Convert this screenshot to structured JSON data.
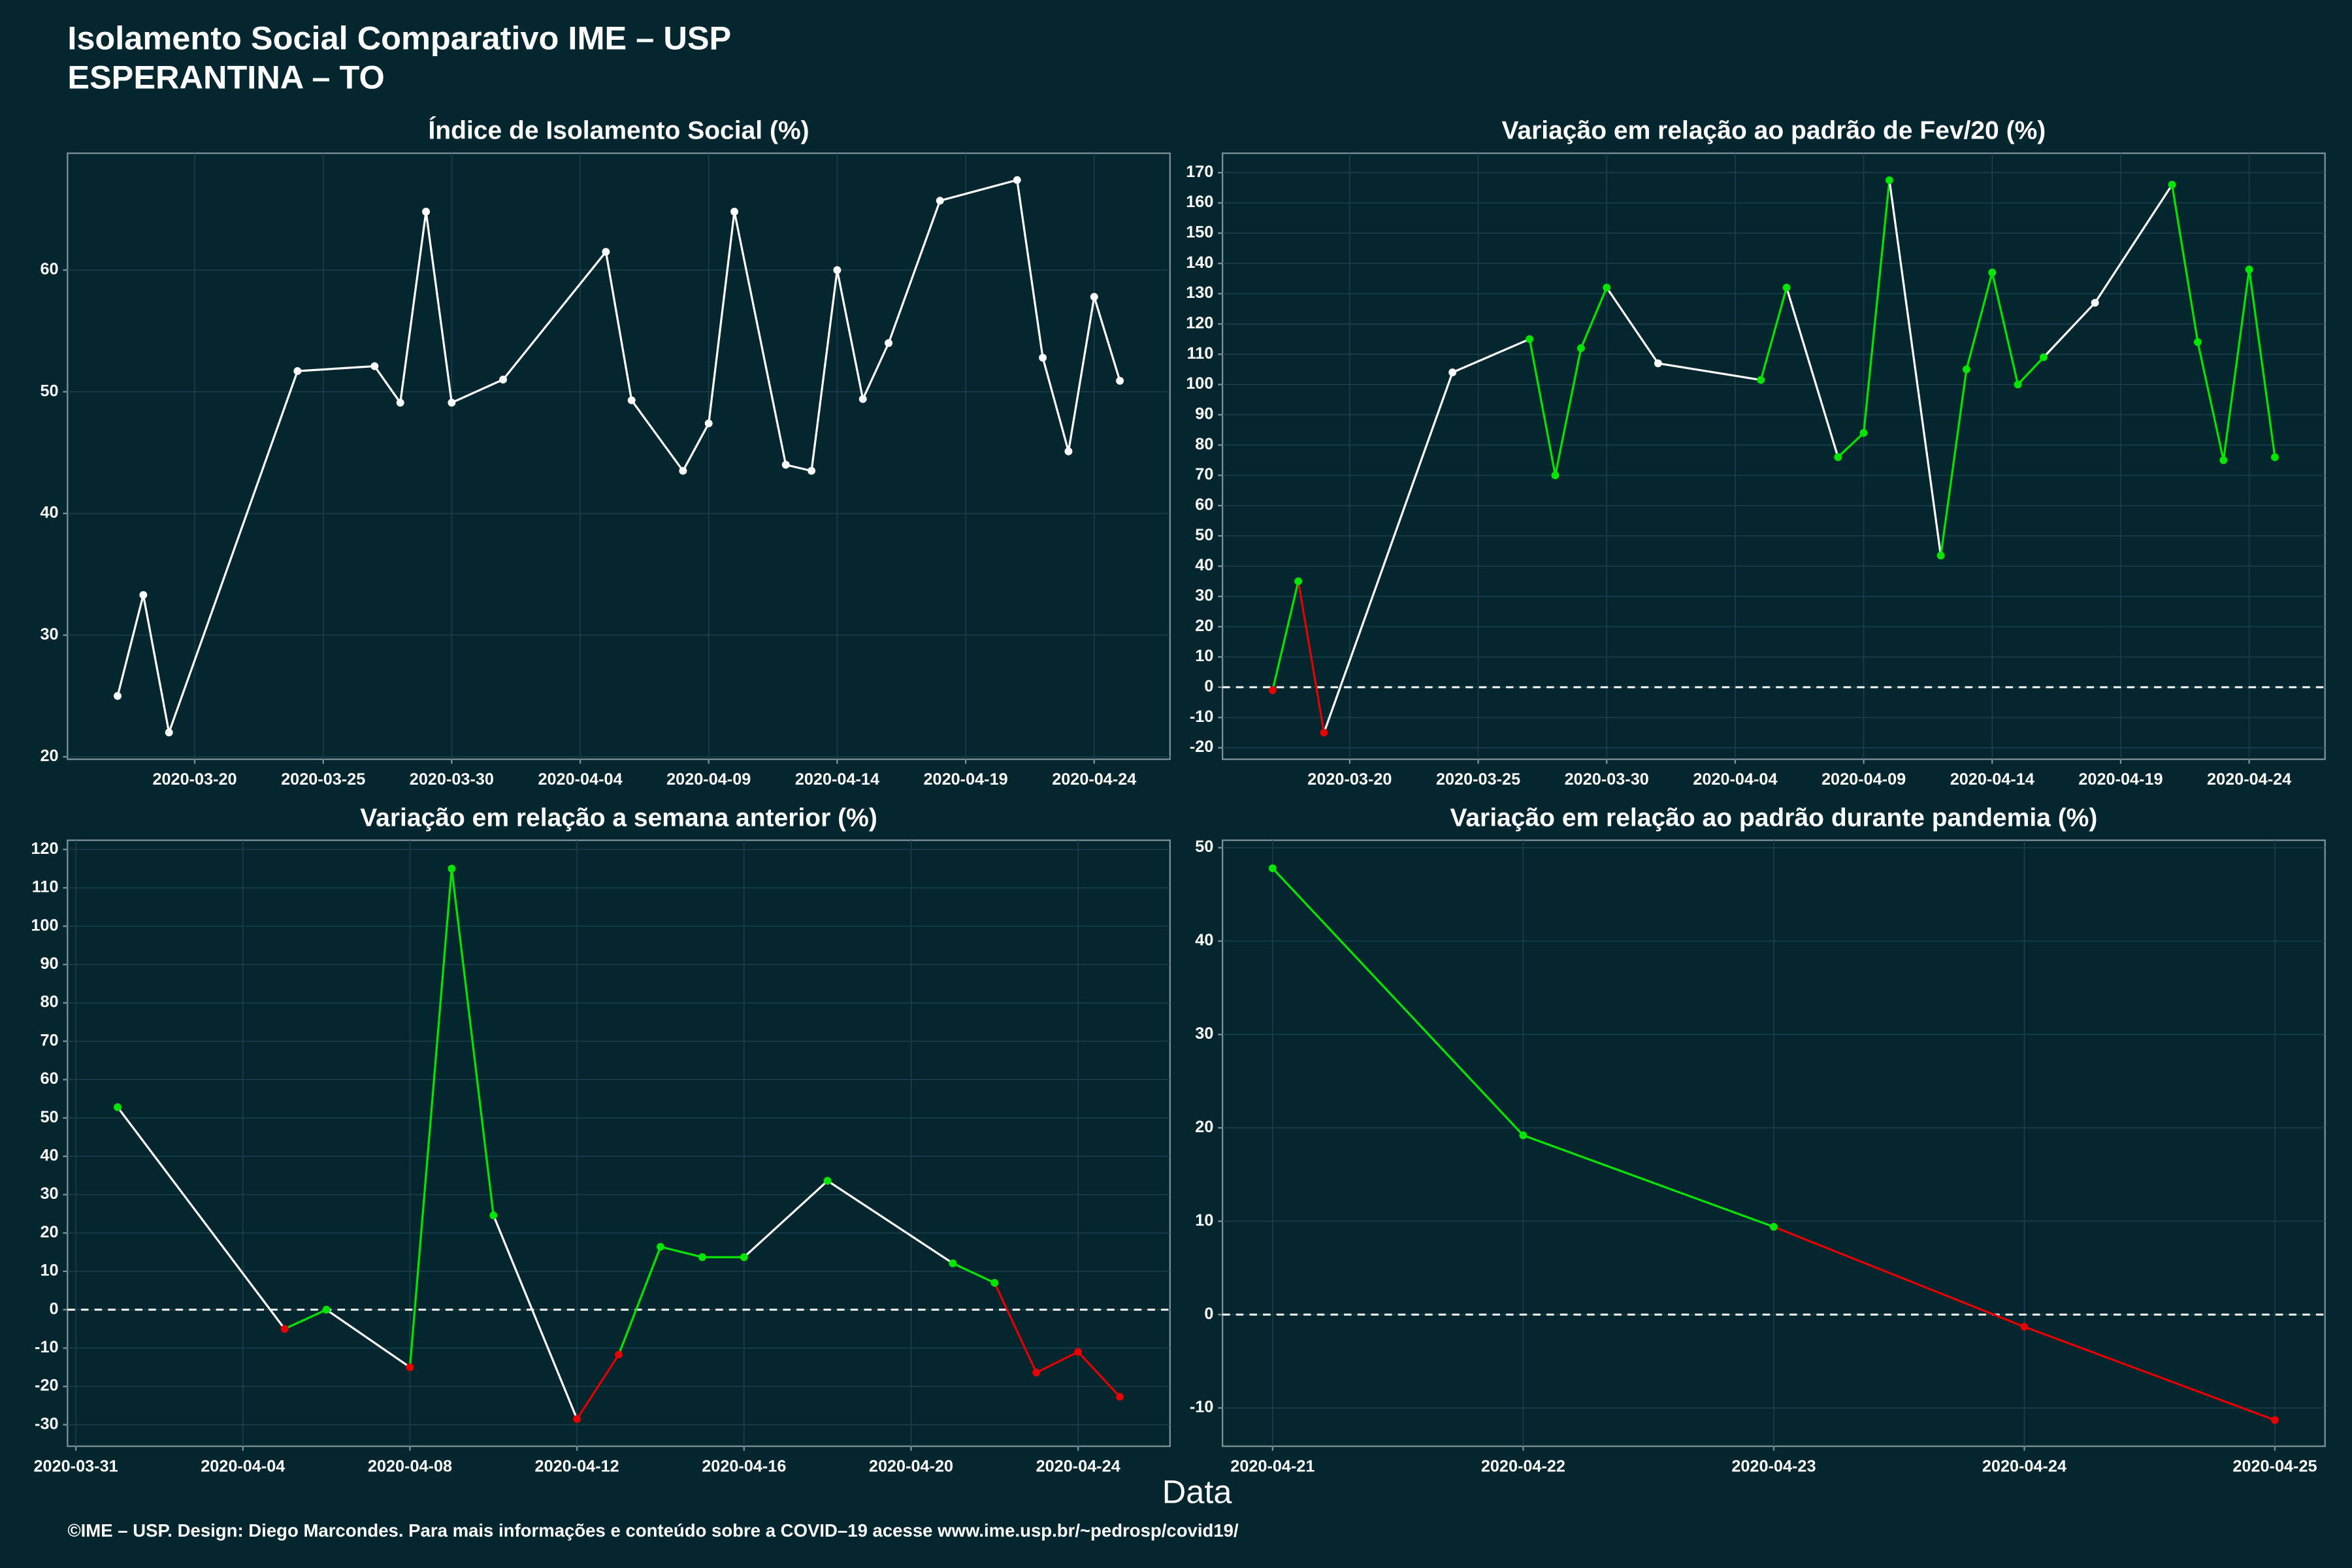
{
  "title": "Isolamento Social Comparativo IME – USP",
  "subtitle": "ESPERANTINA – TO",
  "xlabel": "Data",
  "footer": "©IME – USP. Design: Diego Marcondes. Para mais informações e conteúdo sobre a COVID–19 acesse www.ime.usp.br/~pedrosp/covid19/",
  "chart_data": [
    {
      "type": "line",
      "title": "Índice de Isolamento Social (%)",
      "x": [
        "2020-03-17",
        "2020-03-18",
        "2020-03-19",
        "2020-03-24",
        "2020-03-27",
        "2020-03-28",
        "2020-03-29",
        "2020-03-30",
        "2020-04-01",
        "2020-04-05",
        "2020-04-06",
        "2020-04-08",
        "2020-04-09",
        "2020-04-10",
        "2020-04-12",
        "2020-04-13",
        "2020-04-14",
        "2020-04-15",
        "2020-04-16",
        "2020-04-18",
        "2020-04-21",
        "2020-04-22",
        "2020-04-23",
        "2020-04-24",
        "2020-04-25"
      ],
      "values": [
        25.0,
        33.3,
        22.0,
        51.7,
        52.1,
        49.1,
        64.8,
        49.1,
        51.0,
        61.5,
        49.3,
        43.5,
        47.4,
        64.8,
        44.0,
        43.5,
        60.0,
        49.4,
        54.0,
        65.7,
        67.4,
        52.8,
        45.1,
        57.8,
        50.9
      ],
      "point_colors": [
        "#ffffff",
        "#ffffff",
        "#ffffff",
        "#ffffff",
        "#ffffff",
        "#ffffff",
        "#ffffff",
        "#ffffff",
        "#ffffff",
        "#ffffff",
        "#ffffff",
        "#ffffff",
        "#ffffff",
        "#ffffff",
        "#ffffff",
        "#ffffff",
        "#ffffff",
        "#ffffff",
        "#ffffff",
        "#ffffff",
        "#ffffff",
        "#ffffff",
        "#ffffff",
        "#ffffff",
        "#ffffff"
      ],
      "segment_colors": [
        "#ffffff",
        "#ffffff",
        "#ffffff",
        "#ffffff",
        "#ffffff",
        "#ffffff",
        "#ffffff",
        "#ffffff",
        "#ffffff",
        "#ffffff",
        "#ffffff",
        "#ffffff",
        "#ffffff",
        "#ffffff",
        "#ffffff",
        "#ffffff",
        "#ffffff",
        "#ffffff",
        "#ffffff",
        "#ffffff",
        "#ffffff",
        "#ffffff",
        "#ffffff",
        "#ffffff"
      ],
      "xticks": [
        "2020-03-20",
        "2020-03-25",
        "2020-03-30",
        "2020-04-04",
        "2020-04-09",
        "2020-04-14",
        "2020-04-19",
        "2020-04-24"
      ],
      "ylim": [
        19.8,
        69.6
      ],
      "yticks": [
        20,
        30,
        40,
        50,
        60
      ],
      "grid": true
    },
    {
      "type": "line",
      "title": "Variação em relação ao padrão de Fev/20 (%)",
      "x": [
        "2020-03-17",
        "2020-03-18",
        "2020-03-19",
        "2020-03-24",
        "2020-03-27",
        "2020-03-28",
        "2020-03-29",
        "2020-03-30",
        "2020-04-01",
        "2020-04-05",
        "2020-04-06",
        "2020-04-08",
        "2020-04-09",
        "2020-04-10",
        "2020-04-12",
        "2020-04-13",
        "2020-04-14",
        "2020-04-15",
        "2020-04-16",
        "2020-04-18",
        "2020-04-21",
        "2020-04-22",
        "2020-04-23",
        "2020-04-24",
        "2020-04-25"
      ],
      "values": [
        -1,
        35,
        -15,
        104,
        115,
        70,
        112,
        132,
        107,
        101.5,
        132,
        76,
        84,
        167.5,
        43.5,
        105,
        137,
        100,
        109,
        127,
        166,
        114,
        75,
        138,
        76
      ],
      "point_colors": [
        "#e60000",
        "#00e600",
        "#e60000",
        "#ffffff",
        "#00e600",
        "#00e600",
        "#00e600",
        "#00e600",
        "#ffffff",
        "#00e600",
        "#00e600",
        "#00e600",
        "#00e600",
        "#00e600",
        "#00e600",
        "#00e600",
        "#00e600",
        "#00e600",
        "#00e600",
        "#ffffff",
        "#00e600",
        "#00e600",
        "#00e600",
        "#00e600",
        "#00e600"
      ],
      "segment_colors": [
        "#00e600",
        "#e60000",
        "#ffffff",
        "#ffffff",
        "#00e600",
        "#00e600",
        "#00e600",
        "#ffffff",
        "#ffffff",
        "#00e600",
        "#ffffff",
        "#00e600",
        "#00e600",
        "#ffffff",
        "#00e600",
        "#00e600",
        "#00e600",
        "#00e600",
        "#ffffff",
        "#ffffff",
        "#00e600",
        "#00e600",
        "#00e600",
        "#00e600"
      ],
      "xticks": [
        "2020-03-20",
        "2020-03-25",
        "2020-03-30",
        "2020-04-04",
        "2020-04-09",
        "2020-04-14",
        "2020-04-19",
        "2020-04-24"
      ],
      "ylim": [
        -23.8,
        176.4
      ],
      "yticks": [
        -20,
        -10,
        0,
        10,
        20,
        30,
        40,
        50,
        60,
        70,
        80,
        90,
        100,
        110,
        120,
        130,
        140,
        150,
        160,
        170
      ],
      "reference_line": 0,
      "grid": true
    },
    {
      "type": "line",
      "title": "Variação em relação a semana anterior (%)",
      "x": [
        "2020-04-01",
        "2020-04-05",
        "2020-04-06",
        "2020-04-08",
        "2020-04-09",
        "2020-04-10",
        "2020-04-12",
        "2020-04-13",
        "2020-04-14",
        "2020-04-15",
        "2020-04-16",
        "2020-04-18",
        "2020-04-21",
        "2020-04-22",
        "2020-04-23",
        "2020-04-24",
        "2020-04-25"
      ],
      "values": [
        52.8,
        -5,
        0,
        -15,
        115,
        24.6,
        -28.5,
        -11.7,
        16.4,
        13.7,
        13.7,
        33.6,
        12.1,
        7,
        -16.4,
        -11,
        -22.7
      ],
      "point_colors": [
        "#00e600",
        "#e60000",
        "#00e600",
        "#e60000",
        "#00e600",
        "#00e600",
        "#e60000",
        "#e60000",
        "#00e600",
        "#00e600",
        "#00e600",
        "#00e600",
        "#00e600",
        "#00e600",
        "#e60000",
        "#e60000",
        "#e60000"
      ],
      "segment_colors": [
        "#ffffff",
        "#00e600",
        "#ffffff",
        "#00e600",
        "#00e600",
        "#ffffff",
        "#e60000",
        "#00e600",
        "#00e600",
        "#00e600",
        "#ffffff",
        "#ffffff",
        "#00e600",
        "#e60000",
        "#e60000",
        "#e60000"
      ],
      "xticks": [
        "2020-03-31",
        "2020-04-04",
        "2020-04-08",
        "2020-04-12",
        "2020-04-16",
        "2020-04-20",
        "2020-04-24"
      ],
      "ylim": [
        -35.6,
        122.4
      ],
      "yticks": [
        -30,
        -20,
        -10,
        0,
        10,
        20,
        30,
        40,
        50,
        60,
        70,
        80,
        90,
        100,
        110,
        120
      ],
      "reference_line": 0,
      "grid": true
    },
    {
      "type": "line",
      "title": "Variação em relação ao padrão durante pandemia (%)",
      "x": [
        "2020-04-21",
        "2020-04-22",
        "2020-04-23",
        "2020-04-24",
        "2020-04-25"
      ],
      "values": [
        47.8,
        19.2,
        9.4,
        -1.3,
        -11.3
      ],
      "point_colors": [
        "#00e600",
        "#00e600",
        "#00e600",
        "#e60000",
        "#e60000"
      ],
      "segment_colors": [
        "#00e600",
        "#00e600",
        "#e60000",
        "#e60000"
      ],
      "xticks": [
        "2020-04-21",
        "2020-04-22",
        "2020-04-23",
        "2020-04-24",
        "2020-04-25"
      ],
      "ylim": [
        -14.1,
        50.8
      ],
      "yticks": [
        -10,
        0,
        10,
        20,
        30,
        40,
        50
      ],
      "reference_line": 0,
      "grid": true
    }
  ]
}
